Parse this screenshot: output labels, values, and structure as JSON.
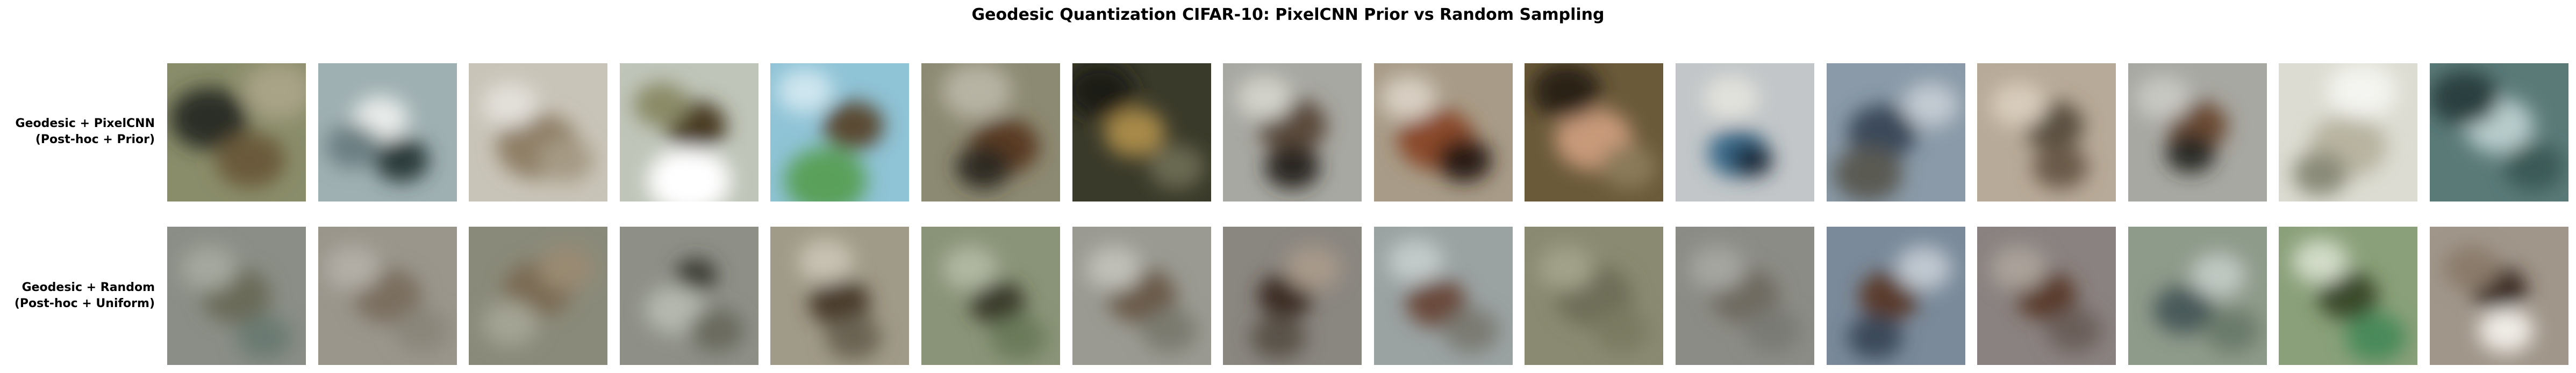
{
  "title": "Geodesic Quantization CIFAR-10: PixelCNN Prior vs Random Sampling",
  "rows": [
    {
      "label_line1": "Geodesic + PixelCNN",
      "label_line2": "(Post-hoc + Prior)",
      "samples": [
        {
          "bg": "#8a8d6a",
          "blobs": [
            [
              "#2b2f25",
              0.3,
              0.4,
              0.28
            ],
            [
              "#6b5a3a",
              0.6,
              0.7,
              0.25
            ],
            [
              "#a9a387",
              0.8,
              0.2,
              0.25
            ]
          ]
        },
        {
          "bg": "#9fb0b2",
          "blobs": [
            [
              "#2c3a3a",
              0.6,
              0.7,
              0.2
            ],
            [
              "#e9ecea",
              0.45,
              0.4,
              0.2
            ],
            [
              "#6c7f82",
              0.25,
              0.6,
              0.2
            ]
          ]
        },
        {
          "bg": "#c9c4b8",
          "blobs": [
            [
              "#8f7f66",
              0.5,
              0.6,
              0.3
            ],
            [
              "#e3e0da",
              0.3,
              0.3,
              0.2
            ],
            [
              "#a59a84",
              0.7,
              0.7,
              0.2
            ]
          ]
        },
        {
          "bg": "#bfc5b9",
          "blobs": [
            [
              "#4a3a22",
              0.55,
              0.45,
              0.22
            ],
            [
              "#ffffff",
              0.5,
              0.85,
              0.3
            ],
            [
              "#8a8a66",
              0.3,
              0.3,
              0.2
            ]
          ]
        },
        {
          "bg": "#8fc3d6",
          "blobs": [
            [
              "#5a4a32",
              0.6,
              0.45,
              0.22
            ],
            [
              "#5aa05a",
              0.4,
              0.85,
              0.3
            ],
            [
              "#cfe6ef",
              0.25,
              0.2,
              0.2
            ]
          ]
        },
        {
          "bg": "#8d8a73",
          "blobs": [
            [
              "#5a3a22",
              0.6,
              0.6,
              0.25
            ],
            [
              "#2f2a22",
              0.45,
              0.75,
              0.2
            ],
            [
              "#b8b4a4",
              0.4,
              0.2,
              0.25
            ]
          ]
        },
        {
          "bg": "#3a3a2a",
          "blobs": [
            [
              "#a88a4a",
              0.45,
              0.5,
              0.22
            ],
            [
              "#1a1a14",
              0.2,
              0.2,
              0.25
            ],
            [
              "#6a6a52",
              0.75,
              0.75,
              0.2
            ]
          ]
        },
        {
          "bg": "#a8a8a2",
          "blobs": [
            [
              "#5a4a3a",
              0.5,
              0.45,
              0.25
            ],
            [
              "#2a2824",
              0.5,
              0.75,
              0.2
            ],
            [
              "#d2d2ca",
              0.3,
              0.25,
              0.2
            ]
          ]
        },
        {
          "bg": "#a89c88",
          "blobs": [
            [
              "#8a4a2a",
              0.45,
              0.55,
              0.28
            ],
            [
              "#2a1a14",
              0.65,
              0.7,
              0.2
            ],
            [
              "#d8cfc2",
              0.25,
              0.25,
              0.2
            ]
          ]
        },
        {
          "bg": "#6a5a3a",
          "blobs": [
            [
              "#c89a7a",
              0.5,
              0.55,
              0.28
            ],
            [
              "#2a2014",
              0.3,
              0.2,
              0.25
            ],
            [
              "#8a7a5a",
              0.75,
              0.75,
              0.2
            ]
          ]
        },
        {
          "bg": "#c2c6c8",
          "blobs": [
            [
              "#3a6a8a",
              0.45,
              0.65,
              0.22
            ],
            [
              "#1a2a3a",
              0.55,
              0.7,
              0.15
            ],
            [
              "#e2e2dc",
              0.4,
              0.25,
              0.2
            ]
          ]
        },
        {
          "bg": "#8a9aa8",
          "blobs": [
            [
              "#3a4a5a",
              0.4,
              0.5,
              0.25
            ],
            [
              "#c2cad2",
              0.75,
              0.3,
              0.2
            ],
            [
              "#5a5a52",
              0.3,
              0.8,
              0.25
            ]
          ]
        },
        {
          "bg": "#b8aa98",
          "blobs": [
            [
              "#5a5040",
              0.55,
              0.45,
              0.22
            ],
            [
              "#d8ccbc",
              0.3,
              0.3,
              0.2
            ],
            [
              "#6a5a48",
              0.6,
              0.75,
              0.2
            ]
          ]
        },
        {
          "bg": "#a8a8a2",
          "blobs": [
            [
              "#6a4a30",
              0.5,
              0.45,
              0.22
            ],
            [
              "#2a2a26",
              0.45,
              0.65,
              0.18
            ],
            [
              "#c8c8c2",
              0.25,
              0.25,
              0.2
            ]
          ]
        },
        {
          "bg": "#dcdcd2",
          "blobs": [
            [
              "#b8b4a0",
              0.5,
              0.6,
              0.28
            ],
            [
              "#f4f4f0",
              0.6,
              0.2,
              0.25
            ],
            [
              "#8a8a78",
              0.3,
              0.8,
              0.2
            ]
          ]
        },
        {
          "bg": "#5a7a78",
          "blobs": [
            [
              "#b8cccc",
              0.5,
              0.45,
              0.25
            ],
            [
              "#2a4040",
              0.25,
              0.25,
              0.25
            ],
            [
              "#3a5a56",
              0.75,
              0.75,
              0.22
            ]
          ]
        }
      ]
    },
    {
      "label_line1": "Geodesic + Random",
      "label_line2": "(Post-hoc + Uniform)",
      "samples": [
        {
          "bg": "#8a8e86",
          "blobs": [
            [
              "#6a6a58",
              0.5,
              0.5,
              0.25
            ],
            [
              "#a4a89e",
              0.3,
              0.3,
              0.2
            ],
            [
              "#6a7a72",
              0.7,
              0.8,
              0.2
            ]
          ]
        },
        {
          "bg": "#9a968c",
          "blobs": [
            [
              "#7a6e5e",
              0.5,
              0.5,
              0.25
            ],
            [
              "#b2aea6",
              0.25,
              0.3,
              0.2
            ],
            [
              "#8a867a",
              0.75,
              0.75,
              0.2
            ]
          ]
        },
        {
          "bg": "#8a8a7a",
          "blobs": [
            [
              "#7a6a52",
              0.5,
              0.45,
              0.25
            ],
            [
              "#a4a494",
              0.3,
              0.7,
              0.2
            ],
            [
              "#9a8a72",
              0.7,
              0.3,
              0.2
            ]
          ]
        },
        {
          "bg": "#8e9088",
          "blobs": [
            [
              "#3a3a30",
              0.55,
              0.35,
              0.15
            ],
            [
              "#b4b8ae",
              0.4,
              0.6,
              0.22
            ],
            [
              "#6a6a5e",
              0.7,
              0.75,
              0.2
            ]
          ]
        },
        {
          "bg": "#a09a88",
          "blobs": [
            [
              "#4a3a2a",
              0.5,
              0.55,
              0.22
            ],
            [
              "#c8c2b2",
              0.4,
              0.25,
              0.2
            ],
            [
              "#6a6452",
              0.6,
              0.8,
              0.2
            ]
          ]
        },
        {
          "bg": "#8a9478",
          "blobs": [
            [
              "#3a3a2a",
              0.55,
              0.55,
              0.2
            ],
            [
              "#b0b8a2",
              0.35,
              0.3,
              0.2
            ],
            [
              "#6a7a5a",
              0.7,
              0.8,
              0.2
            ]
          ]
        },
        {
          "bg": "#9a9a92",
          "blobs": [
            [
              "#6a5a4a",
              0.5,
              0.5,
              0.25
            ],
            [
              "#c0c0b8",
              0.3,
              0.3,
              0.2
            ],
            [
              "#7a7a70",
              0.7,
              0.75,
              0.2
            ]
          ]
        },
        {
          "bg": "#8a8680",
          "blobs": [
            [
              "#3a2a22",
              0.45,
              0.5,
              0.2
            ],
            [
              "#a89a8a",
              0.65,
              0.3,
              0.2
            ],
            [
              "#5a524a",
              0.4,
              0.8,
              0.2
            ]
          ]
        },
        {
          "bg": "#9aa2a2",
          "blobs": [
            [
              "#6a4a3a",
              0.45,
              0.55,
              0.22
            ],
            [
              "#c2caca",
              0.3,
              0.25,
              0.2
            ],
            [
              "#7a7a72",
              0.7,
              0.75,
              0.2
            ]
          ]
        },
        {
          "bg": "#8a8a72",
          "blobs": [
            [
              "#6e6e58",
              0.5,
              0.5,
              0.28
            ],
            [
              "#a2a28a",
              0.3,
              0.3,
              0.2
            ],
            [
              "#7a7a62",
              0.7,
              0.75,
              0.2
            ]
          ]
        },
        {
          "bg": "#8c8c86",
          "blobs": [
            [
              "#6e6a60",
              0.5,
              0.5,
              0.25
            ],
            [
              "#a6a6a0",
              0.3,
              0.3,
              0.2
            ],
            [
              "#7a7a74",
              0.7,
              0.75,
              0.2
            ]
          ]
        },
        {
          "bg": "#7a8a9a",
          "blobs": [
            [
              "#5a3a2a",
              0.45,
              0.5,
              0.22
            ],
            [
              "#c0c8d0",
              0.7,
              0.3,
              0.2
            ],
            [
              "#3a4a5a",
              0.35,
              0.8,
              0.2
            ]
          ]
        },
        {
          "bg": "#8a8280",
          "blobs": [
            [
              "#5a3a2a",
              0.5,
              0.5,
              0.22
            ],
            [
              "#aaa29a",
              0.3,
              0.3,
              0.2
            ],
            [
              "#6a5e5a",
              0.7,
              0.75,
              0.2
            ]
          ]
        },
        {
          "bg": "#8e9a8a",
          "blobs": [
            [
              "#4a5a5a",
              0.4,
              0.6,
              0.22
            ],
            [
              "#c0c8c2",
              0.65,
              0.35,
              0.2
            ],
            [
              "#6a7a6a",
              0.75,
              0.75,
              0.2
            ]
          ]
        },
        {
          "bg": "#8aa07a",
          "blobs": [
            [
              "#3a4a2a",
              0.5,
              0.5,
              0.22
            ],
            [
              "#d2dcc8",
              0.3,
              0.25,
              0.2
            ],
            [
              "#4a8a5a",
              0.7,
              0.8,
              0.22
            ]
          ]
        },
        {
          "bg": "#a0968a",
          "blobs": [
            [
              "#3a2a22",
              0.5,
              0.45,
              0.2
            ],
            [
              "#f0ece6",
              0.55,
              0.75,
              0.2
            ],
            [
              "#8a7a6a",
              0.3,
              0.3,
              0.2
            ]
          ]
        }
      ]
    }
  ]
}
